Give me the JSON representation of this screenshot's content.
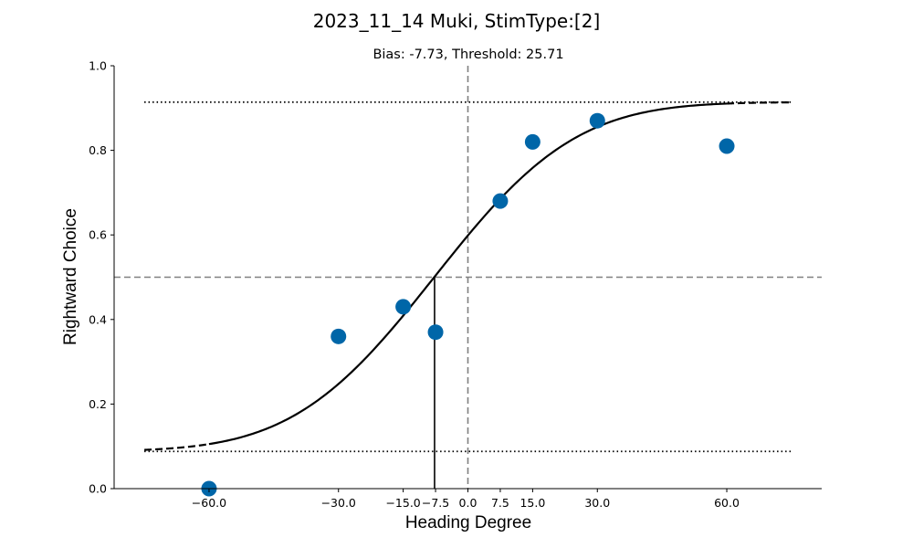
{
  "chart_data": {
    "type": "scatter",
    "title": "2023_11_14 Muki, StimType:[2]",
    "subtitle": "Bias: -7.73, Threshold: 25.71",
    "xlabel": "Heading Degree",
    "ylabel": "Rightward Choice",
    "xlim": [
      -82,
      82
    ],
    "ylim": [
      0,
      1
    ],
    "x_ticks": [
      -60.0,
      -30.0,
      -15.0,
      -7.5,
      0.0,
      7.5,
      15.0,
      30.0,
      60.0
    ],
    "x_tick_labels": [
      "−60.0",
      "−30.0",
      "−15.0",
      "−7.5",
      "0.0",
      "7.5",
      "15.0",
      "30.0",
      "60.0"
    ],
    "y_ticks": [
      0.0,
      0.2,
      0.4,
      0.6,
      0.8,
      1.0
    ],
    "y_tick_labels": [
      "0.0",
      "0.2",
      "0.4",
      "0.6",
      "0.8",
      "1.0"
    ],
    "points": {
      "x": [
        -60,
        -30,
        -15,
        -7.5,
        7.5,
        15,
        30,
        60
      ],
      "y": [
        0.0,
        0.36,
        0.43,
        0.37,
        0.68,
        0.82,
        0.87,
        0.81
      ],
      "color": "#0066a8"
    },
    "fit": {
      "bias": -7.73,
      "threshold": 25.71,
      "guess_rate": 0.088,
      "lapse_rate": 0.086,
      "color": "#000000"
    },
    "reference_lines": {
      "upper_asymptote": 0.914,
      "lower_asymptote": 0.088,
      "midpoint": 0.5,
      "zero_heading": 0,
      "color": "#808080"
    },
    "grid": false,
    "legend": "none"
  }
}
